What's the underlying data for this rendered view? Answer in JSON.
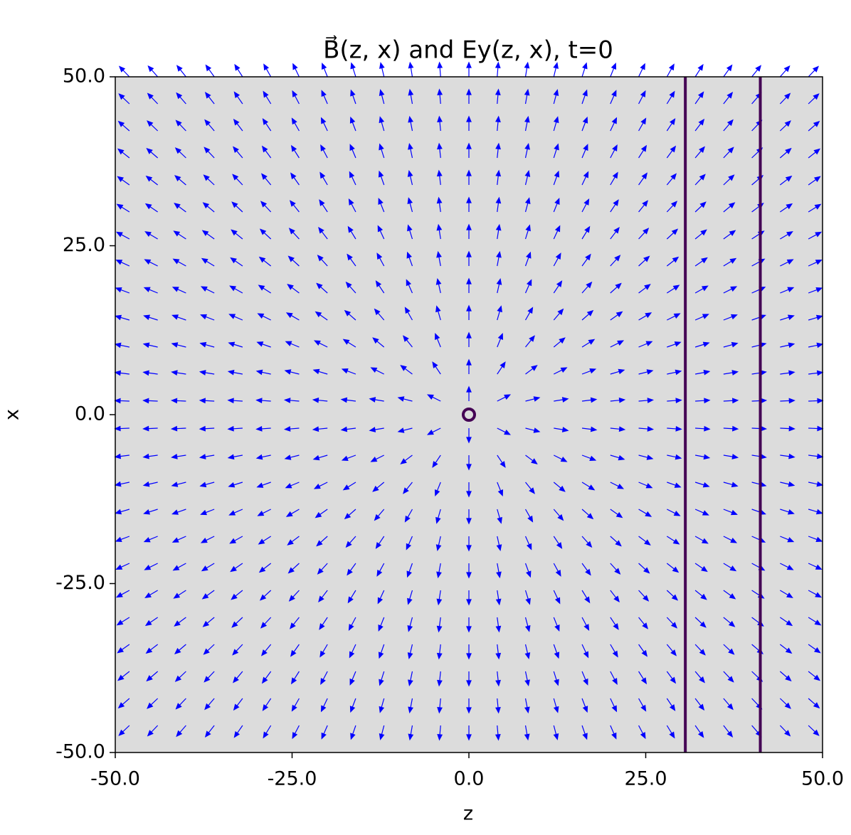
{
  "chart_data": {
    "type": "quiver",
    "title": "B⃗(z, x) and Ey(z, x), t=0",
    "xlabel": "z",
    "ylabel": "x",
    "xlim": [
      -50,
      50
    ],
    "ylim": [
      -50,
      50
    ],
    "xticks": [
      {
        "value": -50,
        "label": "-50.0"
      },
      {
        "value": -25,
        "label": "-25.0"
      },
      {
        "value": 0,
        "label": "0.0"
      },
      {
        "value": 25,
        "label": "25.0"
      },
      {
        "value": 50,
        "label": "50.0"
      }
    ],
    "yticks": [
      {
        "value": -50,
        "label": "-50.0"
      },
      {
        "value": -25,
        "label": "-25.0"
      },
      {
        "value": 0,
        "label": "0.0"
      },
      {
        "value": 25,
        "label": "25.0"
      },
      {
        "value": 50,
        "label": "50.0"
      }
    ],
    "grid_z": [
      -48,
      -44,
      -40,
      -36,
      -32,
      -28,
      -24,
      -20,
      -16,
      -12,
      -8,
      -4,
      0,
      4,
      8,
      12,
      16,
      20,
      24,
      28,
      32,
      36,
      40,
      44,
      48
    ],
    "grid_x": [
      -48,
      -44,
      -40,
      -36,
      -32,
      -28,
      -24,
      -20,
      -16,
      -12,
      -8,
      -4,
      0,
      4,
      8,
      12,
      16,
      20,
      24,
      28,
      32,
      36,
      40,
      44,
      48
    ],
    "grid_offset": [
      0,
      2
    ],
    "color": "blue",
    "source": {
      "z": 0,
      "x": 0,
      "color": "#440154"
    },
    "vlines": {
      "values": [
        30.6,
        41.2
      ],
      "color": "#440154"
    },
    "background": "#dcdcdc"
  }
}
